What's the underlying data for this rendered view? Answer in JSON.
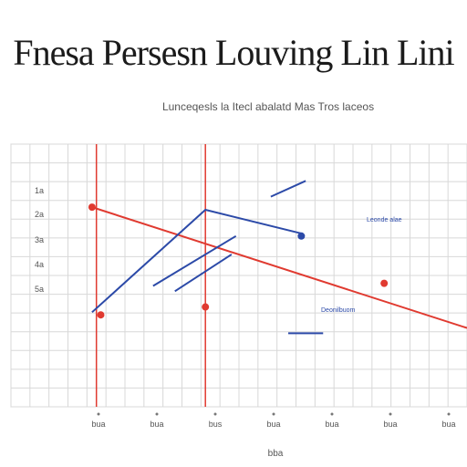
{
  "chart_data": {
    "type": "line",
    "title": "Fnesa Persesn Louving Lin Lini",
    "subtitle": "Lunceqesls la Itecl abalatd Mas Tros laceos",
    "xlabel": "bba",
    "ylabel": "",
    "x_ticks": [
      "bua",
      "bua",
      "bus",
      "bua",
      "bua",
      "bua",
      "bua"
    ],
    "y_ticks": [
      "1a",
      "2a",
      "3a",
      "4a",
      "5a"
    ],
    "annotations": [
      "Leonde alae",
      "Deonilbuom"
    ],
    "xlim": [
      0,
      100
    ],
    "ylim": [
      0,
      100
    ],
    "grid": true,
    "colors": {
      "red": "#e03a30",
      "blue": "#2c4aa8",
      "grid": "#d8d8d8"
    },
    "series": [
      {
        "color": "red",
        "x": [
          14,
          100
        ],
        "y": [
          76,
          30
        ]
      },
      {
        "color": "blue",
        "x": [
          14,
          40,
          62
        ],
        "y": [
          36,
          75,
          66
        ]
      },
      {
        "color": "blue",
        "x": [
          28,
          47
        ],
        "y": [
          46,
          65
        ]
      },
      {
        "color": "blue",
        "x": [
          33,
          46
        ],
        "y": [
          44,
          58
        ]
      },
      {
        "color": "blue",
        "x": [
          55,
          63
        ],
        "y": [
          80,
          86
        ]
      },
      {
        "color": "blue",
        "x": [
          59,
          67
        ],
        "y": [
          28,
          28
        ]
      }
    ],
    "points": [
      {
        "x": 14,
        "y": 76,
        "color": "red"
      },
      {
        "x": 16,
        "y": 35,
        "color": "red"
      },
      {
        "x": 40,
        "y": 38,
        "color": "red"
      },
      {
        "x": 62,
        "y": 65,
        "color": "blue"
      },
      {
        "x": 81,
        "y": 47,
        "color": "red"
      }
    ],
    "vlines": [
      {
        "x": 15,
        "color": "red"
      },
      {
        "x": 40,
        "color": "red"
      }
    ]
  }
}
